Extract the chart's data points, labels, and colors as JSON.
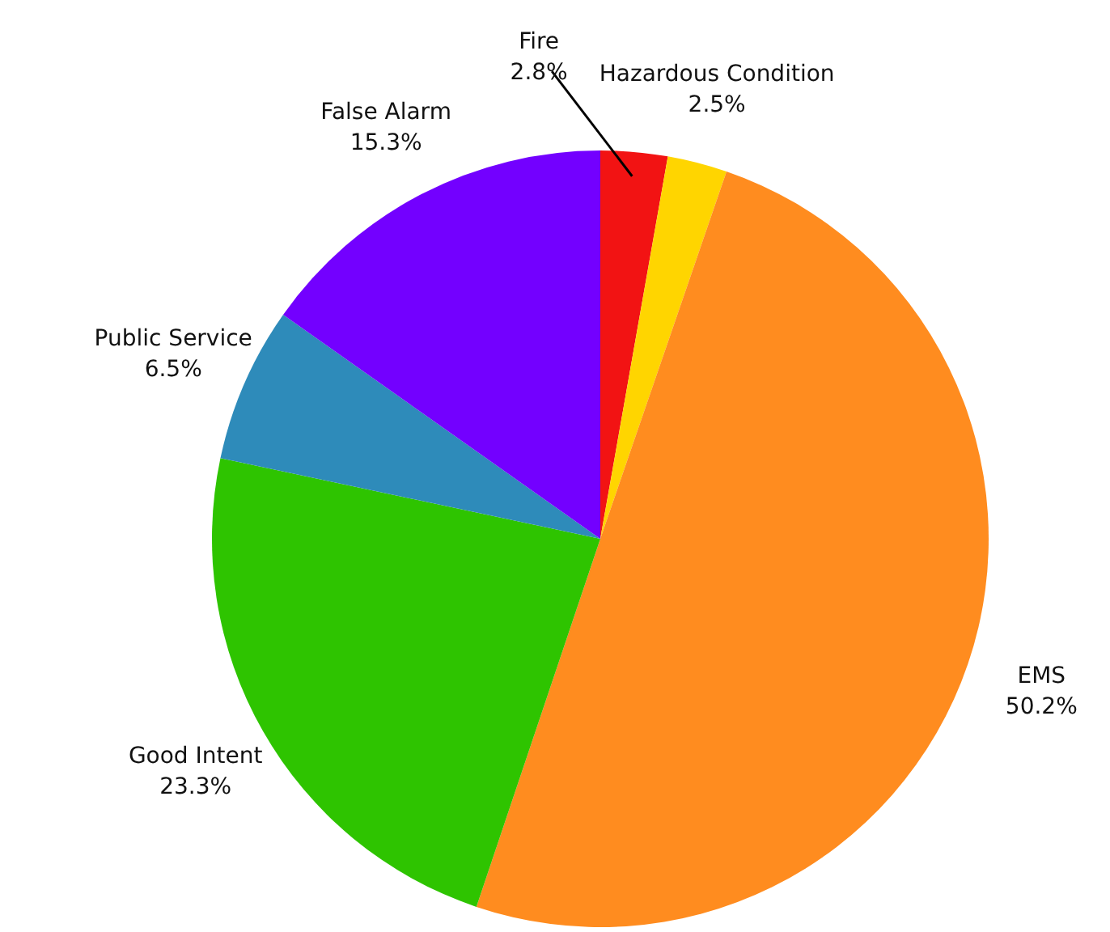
{
  "chart_data": {
    "type": "pie",
    "categories": [
      "Fire",
      "Hazardous Condition",
      "EMS",
      "Good Intent",
      "Public Service",
      "False Alarm"
    ],
    "values": [
      2.8,
      2.5,
      50.2,
      23.3,
      6.5,
      15.3
    ],
    "value_labels": [
      "2.8%",
      "2.5%",
      "50.2%",
      "23.3%",
      "6.5%",
      "15.3%"
    ],
    "colors": [
      "#f21313",
      "#ffd500",
      "#ff8c1f",
      "#2ec400",
      "#2e8bba",
      "#7300ff"
    ]
  }
}
